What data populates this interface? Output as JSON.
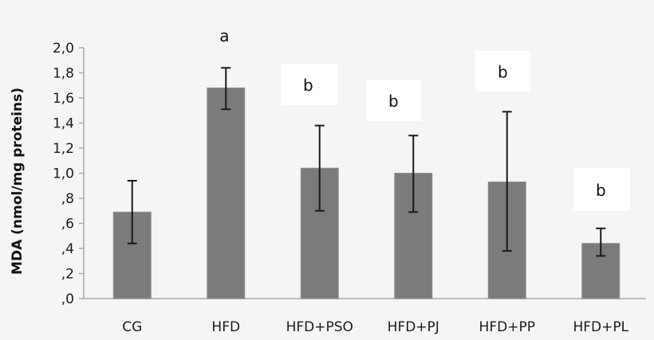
{
  "chart_data": {
    "type": "bar",
    "title": "",
    "xlabel": "",
    "ylabel": "MDA (nmol/mg proteins)",
    "ylim": [
      0,
      2.0
    ],
    "yticks": [
      ",0",
      ",2",
      ",4",
      ",6",
      ",8",
      "1,0",
      "1,2",
      "1,4",
      "1,6",
      "1,8",
      "2,0"
    ],
    "categories": [
      "CG",
      "HFD",
      "HFD+PSO",
      "HFD+PJ",
      "HFD+PP",
      "HFD+PL"
    ],
    "values": [
      0.69,
      1.68,
      1.04,
      1.0,
      0.93,
      0.44
    ],
    "error_low": [
      0.44,
      1.51,
      0.7,
      0.69,
      0.38,
      0.34
    ],
    "error_high": [
      0.94,
      1.84,
      1.38,
      1.3,
      1.49,
      0.56
    ],
    "annotations": [
      "",
      "a",
      "b",
      "b",
      "b",
      "b"
    ],
    "grid": false,
    "legend": null,
    "bar_color": "#7b7b7b"
  }
}
